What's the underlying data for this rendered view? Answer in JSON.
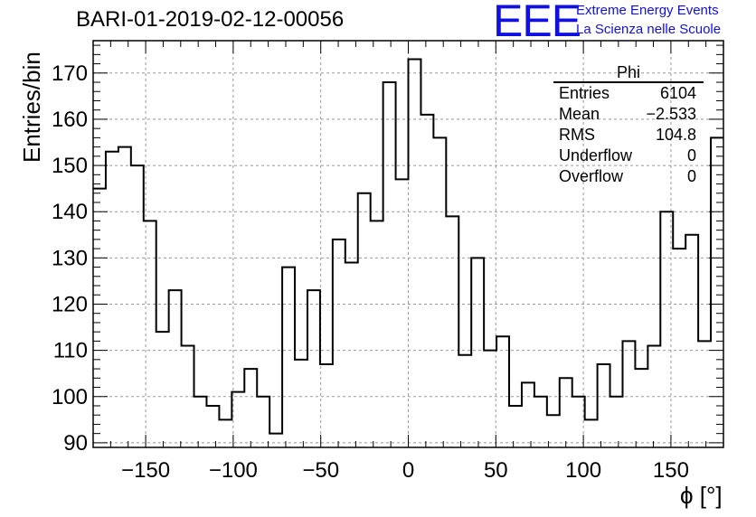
{
  "chart_data": {
    "type": "histogram",
    "title": "BARI-01-2019-02-12-00056",
    "xlabel": "ϕ [°]",
    "ylabel": "Entries/bin",
    "xlim": [
      -180,
      180
    ],
    "ylim": [
      89,
      177
    ],
    "grid": true,
    "bin_width": 7.2,
    "x_ticks": [
      -150,
      -100,
      -50,
      0,
      50,
      100,
      150
    ],
    "x_tick_labels": [
      "−150",
      "−100",
      "−50",
      "0",
      "50",
      "100",
      "150"
    ],
    "y_ticks": [
      90,
      100,
      110,
      120,
      130,
      140,
      150,
      160,
      170
    ],
    "y_tick_labels": [
      "90",
      "100",
      "110",
      "120",
      "130",
      "140",
      "150",
      "160",
      "170"
    ],
    "values": [
      145,
      153,
      154,
      150,
      138,
      114,
      123,
      111,
      100,
      98,
      95,
      101,
      106,
      100,
      92,
      128,
      108,
      123,
      107,
      134,
      129,
      144,
      138,
      168,
      147,
      173,
      161,
      156,
      139,
      109,
      130,
      110,
      113,
      98,
      103,
      100,
      96,
      104,
      100,
      95,
      107,
      100,
      112,
      106,
      111,
      140,
      132,
      135,
      112,
      156
    ]
  },
  "stats_box": {
    "title": "Phi",
    "rows": [
      {
        "label": "Entries",
        "value": "6104"
      },
      {
        "label": "Mean",
        "value": "−2.533"
      },
      {
        "label": "RMS",
        "value": "104.8"
      },
      {
        "label": "Underflow",
        "value": "0"
      },
      {
        "label": "Overflow",
        "value": "0"
      }
    ]
  },
  "logo": {
    "text": "EEE",
    "line1": "Extreme Energy Events",
    "line2": "La Scienza nelle Scuole",
    "color": "#1010e0"
  }
}
